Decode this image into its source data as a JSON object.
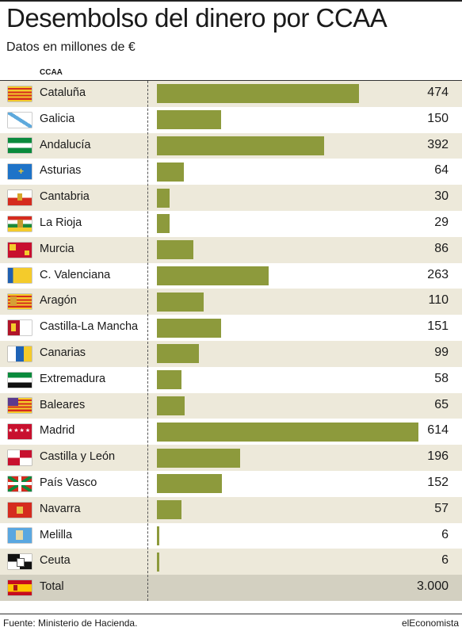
{
  "title": "Desembolso del dinero por CCAA",
  "subtitle": "Datos en millones de €",
  "column_header": "CCAA",
  "source": "Fuente: Ministerio de Hacienda.",
  "brand": "elEconomista",
  "colors": {
    "bar": "#8d9a3c",
    "shade": "#ede9da",
    "total_bg": "#d3d0c1"
  },
  "chart_data": {
    "type": "bar",
    "orientation": "horizontal",
    "title": "Desembolso del dinero por CCAA",
    "subtitle": "Datos en millones de €",
    "categories": [
      "Cataluña",
      "Galicia",
      "Andalucía",
      "Asturias",
      "Cantabria",
      "La Rioja",
      "Murcia",
      "C. Valenciana",
      "Aragón",
      "Castilla-La Mancha",
      "Canarias",
      "Extremadura",
      "Baleares",
      "Madrid",
      "Castilla y León",
      "País Vasco",
      "Navarra",
      "Melilla",
      "Ceuta"
    ],
    "values": [
      474,
      150,
      392,
      64,
      30,
      29,
      86,
      263,
      110,
      151,
      99,
      58,
      65,
      614,
      196,
      152,
      57,
      6,
      6
    ],
    "value_labels": [
      "474",
      "150",
      "392",
      "64",
      "30",
      "29",
      "86",
      "263",
      "110",
      "151",
      "99",
      "58",
      "65",
      "614",
      "196",
      "152",
      "57",
      "6",
      "6"
    ],
    "flag_icons": [
      "flag-cataluna-icon",
      "flag-galicia-icon",
      "flag-andalucia-icon",
      "flag-asturias-icon",
      "flag-cantabria-icon",
      "flag-la-rioja-icon",
      "flag-murcia-icon",
      "flag-c-valenciana-icon",
      "flag-aragon-icon",
      "flag-castilla-la-mancha-icon",
      "flag-canarias-icon",
      "flag-extremadura-icon",
      "flag-baleares-icon",
      "flag-madrid-icon",
      "flag-castilla-y-leon-icon",
      "flag-pais-vasco-icon",
      "flag-navarra-icon",
      "flag-melilla-icon",
      "flag-ceuta-icon"
    ],
    "total": {
      "label": "Total",
      "value": 3000,
      "value_label": "3.000",
      "flag_icon": "flag-spain-icon"
    },
    "xlim": [
      0,
      614
    ],
    "grid": false
  }
}
